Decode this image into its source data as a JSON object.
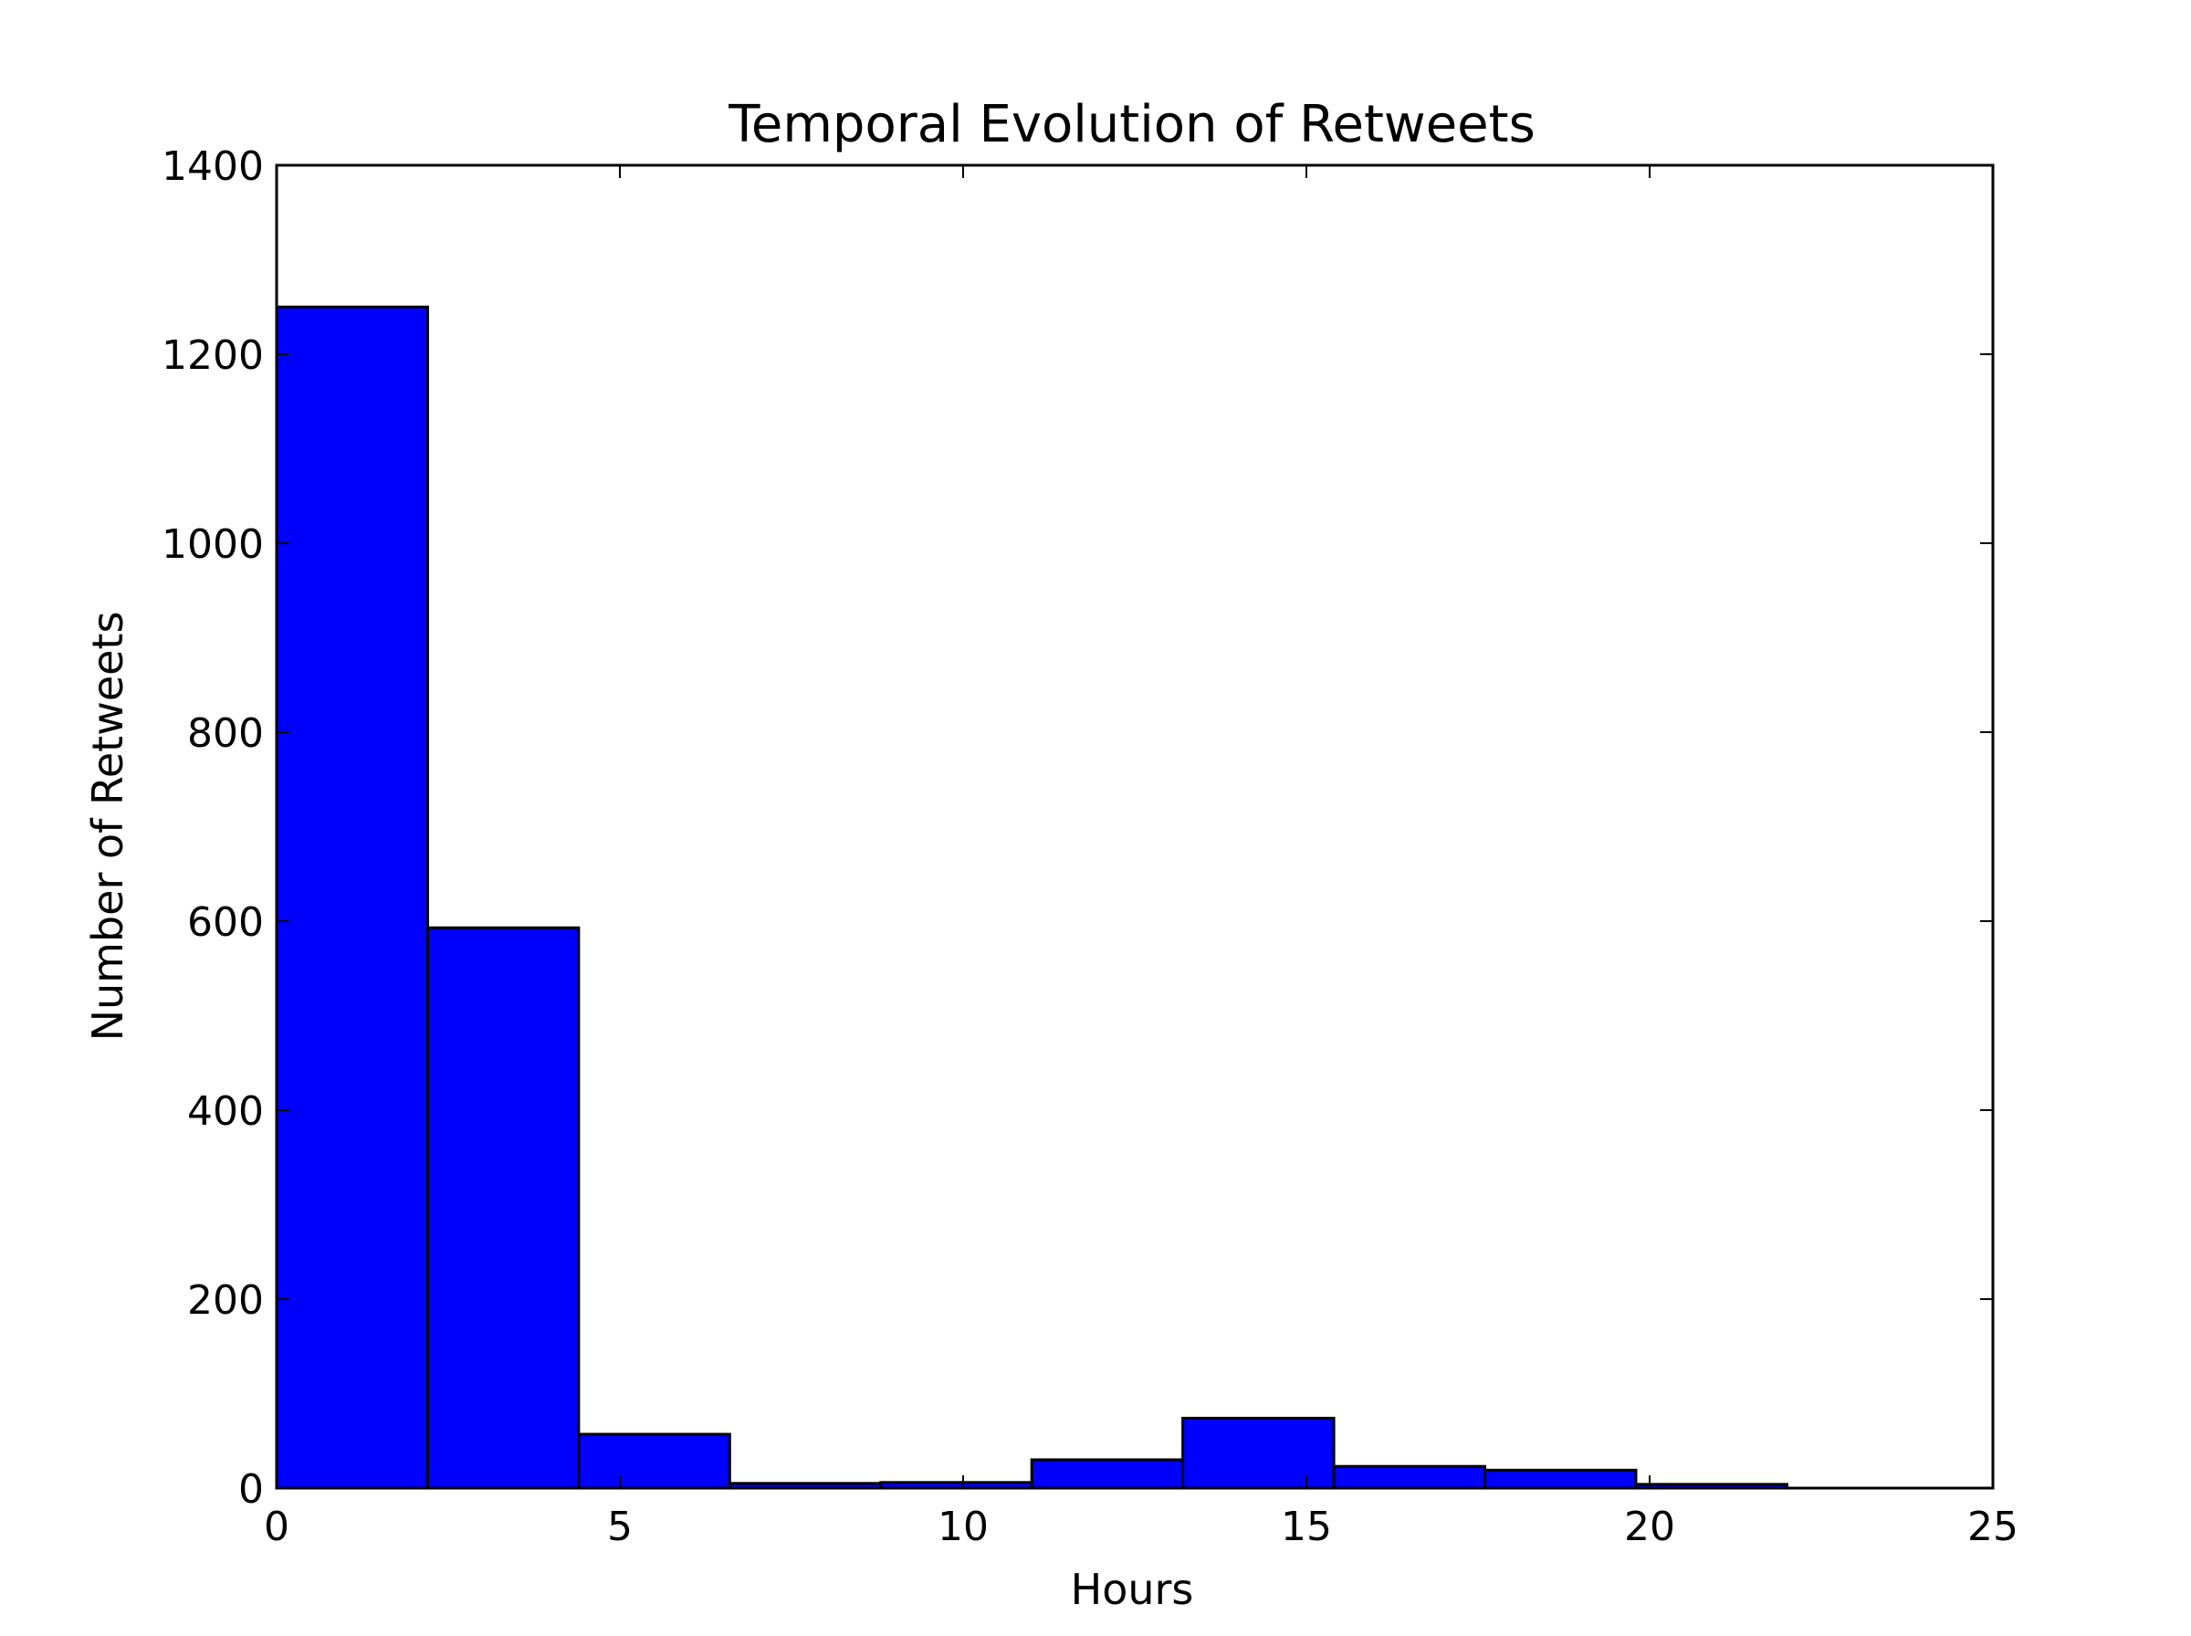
{
  "chart_data": {
    "type": "bar",
    "title": "Temporal Evolution of Retweets",
    "xlabel": "Hours",
    "ylabel": "Number of Retweets",
    "xlim": [
      0,
      25
    ],
    "ylim": [
      0,
      1400
    ],
    "xticks": [
      0,
      5,
      10,
      15,
      20,
      25
    ],
    "yticks": [
      0,
      200,
      400,
      600,
      800,
      1000,
      1200,
      1400
    ],
    "grid": false,
    "legend": "none",
    "bar_color": "#0000ff",
    "edge_color": "#000000",
    "bins": [
      {
        "x0": 0.0,
        "x1": 2.2,
        "value": 1250
      },
      {
        "x0": 2.2,
        "x1": 4.4,
        "value": 593
      },
      {
        "x0": 4.4,
        "x1": 6.6,
        "value": 57
      },
      {
        "x0": 6.6,
        "x1": 8.8,
        "value": 5
      },
      {
        "x0": 8.8,
        "x1": 11.0,
        "value": 6
      },
      {
        "x0": 11.0,
        "x1": 13.2,
        "value": 30
      },
      {
        "x0": 13.2,
        "x1": 15.4,
        "value": 74
      },
      {
        "x0": 15.4,
        "x1": 17.6,
        "value": 23
      },
      {
        "x0": 17.6,
        "x1": 19.8,
        "value": 19
      },
      {
        "x0": 19.8,
        "x1": 22.0,
        "value": 4
      }
    ]
  }
}
